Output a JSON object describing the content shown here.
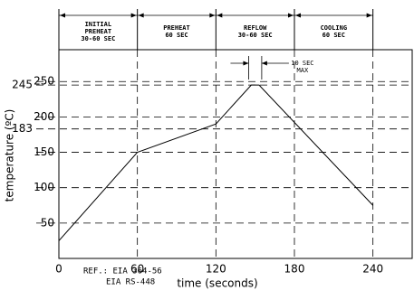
{
  "chart_data": {
    "type": "line",
    "x": [
      0,
      60,
      120,
      147,
      153,
      240
    ],
    "values": [
      25,
      150,
      190,
      245,
      245,
      75
    ],
    "color": "#000000",
    "xlabel": "time (seconds)",
    "ylabel": "temperature (ºC)",
    "xlim": [
      0,
      270
    ],
    "ylim": [
      0,
      295
    ],
    "xticks": [
      0,
      60,
      120,
      180,
      240
    ],
    "yticks": [
      50,
      100,
      150,
      200,
      250
    ],
    "grid": true,
    "marker_ticks": [
      183,
      245
    ],
    "zones": [
      {
        "lines": [
          "INITIAL",
          "PREHEAT",
          "30-60 SEC"
        ],
        "start": 0,
        "end": 60
      },
      {
        "lines": [
          "PREHEAT",
          "60 SEC"
        ],
        "start": 60,
        "end": 120
      },
      {
        "lines": [
          "REFLOW",
          "30-60 SEC"
        ],
        "start": 120,
        "end": 180
      },
      {
        "lines": [
          "COOLING",
          "60 SEC"
        ],
        "start": 180,
        "end": 240
      }
    ],
    "annotation": {
      "lines": [
        "10 SEC",
        "MAX"
      ],
      "start": 145,
      "end": 155
    },
    "reference": [
      "REF.: EIA 364-56",
      "EIA RS-448"
    ]
  }
}
